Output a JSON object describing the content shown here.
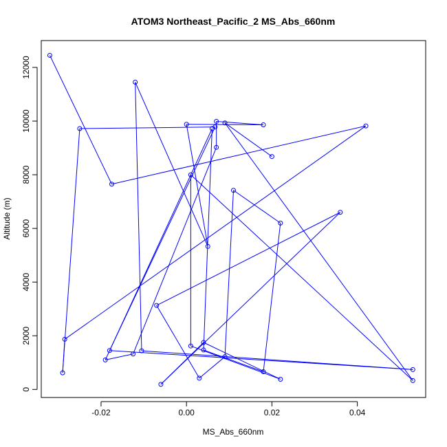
{
  "chart_data": {
    "type": "line",
    "title": "ATOM3 Northeast_Pacific_2 MS_Abs_660nm",
    "xlabel": "MS_Abs_660nm",
    "ylabel": "Altitude (m)",
    "xlim": [
      -0.034,
      0.056
    ],
    "ylim": [
      -300,
      13000
    ],
    "xticks": [
      -0.02,
      0.0,
      0.02,
      0.04
    ],
    "xtick_labels": [
      "-0.02",
      "0.00",
      "0.02",
      "0.04"
    ],
    "yticks": [
      0,
      2000,
      4000,
      6000,
      8000,
      10000,
      12000
    ],
    "yticks_labels": [
      "0",
      "2000",
      "4000",
      "6000",
      "8000",
      "10000",
      "12000"
    ],
    "series": [
      {
        "marker": "open-circle",
        "color": "#0000ff",
        "points": [
          {
            "x": -0.032,
            "y": 12450
          },
          {
            "x": -0.0175,
            "y": 7650
          },
          {
            "x": 0.042,
            "y": 9820
          },
          {
            "x": -0.0285,
            "y": 1870
          },
          {
            "x": -0.029,
            "y": 620
          },
          {
            "x": -0.025,
            "y": 9720
          },
          {
            "x": 0.0067,
            "y": 9780
          },
          {
            "x": -0.018,
            "y": 1450
          },
          {
            "x": 0.053,
            "y": 740
          },
          {
            "x": -0.0105,
            "y": 1440
          },
          {
            "x": -0.012,
            "y": 11450
          },
          {
            "x": 0.005,
            "y": 5330
          },
          {
            "x": 0.0,
            "y": 9880
          },
          {
            "x": 0.018,
            "y": 9860
          },
          {
            "x": 0.007,
            "y": 9990
          },
          {
            "x": 0.007,
            "y": 9020
          },
          {
            "x": -0.0125,
            "y": 1320
          },
          {
            "x": -0.019,
            "y": 1100
          },
          {
            "x": 0.006,
            "y": 9720
          },
          {
            "x": 0.004,
            "y": 1470
          },
          {
            "x": 0.018,
            "y": 660
          },
          {
            "x": 0.022,
            "y": 6200
          },
          {
            "x": 0.011,
            "y": 7420
          },
          {
            "x": 0.009,
            "y": 1220
          },
          {
            "x": 0.003,
            "y": 420
          },
          {
            "x": -0.007,
            "y": 3130
          },
          {
            "x": 0.036,
            "y": 6600
          },
          {
            "x": -0.006,
            "y": 190
          },
          {
            "x": 0.004,
            "y": 1750
          },
          {
            "x": 0.022,
            "y": 380
          },
          {
            "x": 0.001,
            "y": 1620
          },
          {
            "x": 0.001,
            "y": 8000
          },
          {
            "x": 0.053,
            "y": 330
          },
          {
            "x": 0.009,
            "y": 9930
          },
          {
            "x": 0.02,
            "y": 8680
          }
        ]
      }
    ]
  }
}
